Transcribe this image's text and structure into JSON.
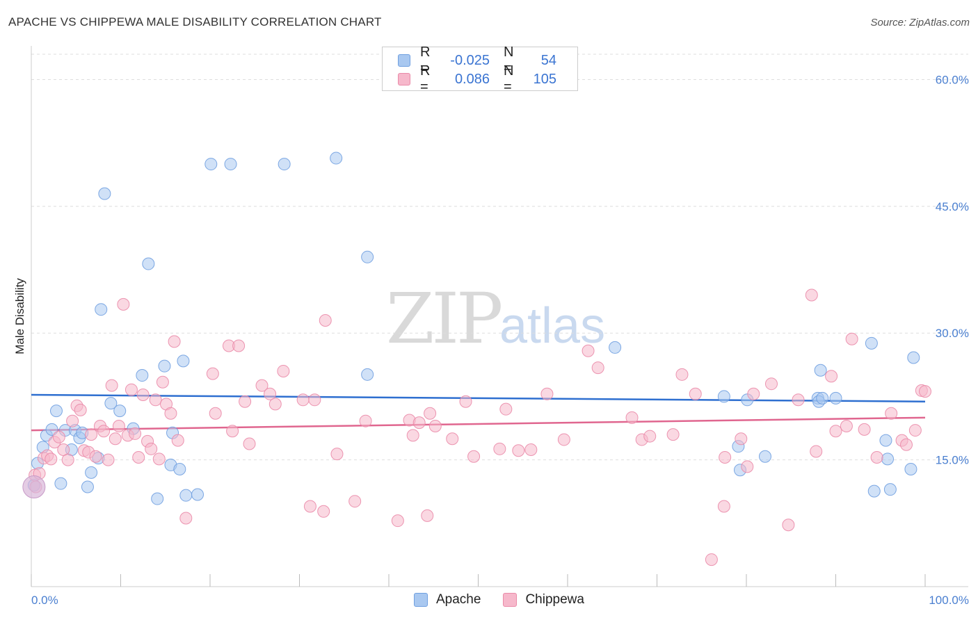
{
  "title": "APACHE VS CHIPPEWA MALE DISABILITY CORRELATION CHART",
  "source": "Source: ZipAtlas.com",
  "watermark": {
    "zip": "ZIP",
    "atlas": "atlas"
  },
  "legend": {
    "rows": [
      {
        "r_label": "R =",
        "r_value": "-0.025",
        "n_label": "N =",
        "n_value": "54"
      },
      {
        "r_label": "R =",
        "r_value": "0.086",
        "n_label": "N =",
        "n_value": "105"
      }
    ]
  },
  "bottom_legend": {
    "apache": "Apache",
    "chippewa": "Chippewa"
  },
  "colors": {
    "apache_fill": "#a9c8f0",
    "apache_stroke": "#6f9fe0",
    "apache_line": "#2e6fd0",
    "chippewa_fill": "#f6b8cb",
    "chippewa_stroke": "#ea8aa8",
    "chippewa_line": "#e0668f",
    "grid": "#dddddd",
    "axis_label": "#4a7fd0"
  },
  "chart_data": {
    "type": "scatter",
    "title": "APACHE VS CHIPPEWA MALE DISABILITY CORRELATION CHART",
    "xlabel": "",
    "ylabel": "Male Disability",
    "xlim": [
      0,
      100
    ],
    "ylim": [
      0,
      63
    ],
    "x_tick_labels": [
      "0.0%",
      "100.0%"
    ],
    "y_ticks": [
      15,
      30,
      45,
      60
    ],
    "y_tick_labels": [
      "15.0%",
      "30.0%",
      "45.0%",
      "60.0%"
    ],
    "grid": true,
    "series": [
      {
        "name": "Apache",
        "r": -0.025,
        "n": 54,
        "trend": {
          "x": [
            0,
            100
          ],
          "y": [
            22.7,
            21.9
          ]
        },
        "points": [
          [
            0.3,
            12.0
          ],
          [
            0.7,
            14.6
          ],
          [
            1.3,
            16.5
          ],
          [
            1.7,
            17.9
          ],
          [
            2.3,
            18.6
          ],
          [
            2.8,
            20.8
          ],
          [
            3.3,
            12.2
          ],
          [
            3.8,
            18.5
          ],
          [
            4.5,
            16.2
          ],
          [
            4.9,
            18.5
          ],
          [
            5.4,
            17.6
          ],
          [
            5.7,
            18.2
          ],
          [
            6.3,
            11.8
          ],
          [
            6.7,
            13.5
          ],
          [
            7.5,
            15.2
          ],
          [
            7.8,
            32.8
          ],
          [
            8.2,
            46.5
          ],
          [
            8.9,
            21.7
          ],
          [
            9.9,
            20.8
          ],
          [
            11.4,
            18.7
          ],
          [
            12.4,
            25.0
          ],
          [
            13.1,
            38.2
          ],
          [
            14.1,
            10.4
          ],
          [
            14.9,
            26.1
          ],
          [
            15.6,
            14.4
          ],
          [
            15.8,
            18.2
          ],
          [
            16.6,
            13.9
          ],
          [
            17.0,
            26.7
          ],
          [
            17.3,
            10.8
          ],
          [
            18.6,
            10.9
          ],
          [
            20.1,
            50.0
          ],
          [
            22.3,
            50.0
          ],
          [
            28.3,
            50.0
          ],
          [
            34.1,
            50.7
          ],
          [
            37.6,
            39.0
          ],
          [
            37.6,
            25.1
          ],
          [
            65.3,
            28.3
          ],
          [
            77.5,
            22.5
          ],
          [
            79.1,
            16.6
          ],
          [
            79.3,
            13.8
          ],
          [
            80.1,
            22.1
          ],
          [
            82.1,
            15.4
          ],
          [
            88.0,
            22.3
          ],
          [
            88.1,
            21.9
          ],
          [
            88.3,
            25.6
          ],
          [
            88.5,
            22.3
          ],
          [
            90.0,
            22.3
          ],
          [
            94.0,
            28.8
          ],
          [
            94.3,
            11.3
          ],
          [
            95.6,
            17.3
          ],
          [
            95.8,
            15.1
          ],
          [
            96.1,
            11.5
          ],
          [
            98.4,
            13.9
          ],
          [
            98.7,
            27.1
          ]
        ]
      },
      {
        "name": "Chippewa",
        "r": 0.086,
        "n": 105,
        "trend": {
          "x": [
            0,
            100
          ],
          "y": [
            18.5,
            20.0
          ]
        },
        "points": [
          [
            0.4,
            13.2
          ],
          [
            0.9,
            13.4
          ],
          [
            1.4,
            15.2
          ],
          [
            1.8,
            15.5
          ],
          [
            2.2,
            15.1
          ],
          [
            2.6,
            17.1
          ],
          [
            3.1,
            17.7
          ],
          [
            3.6,
            16.2
          ],
          [
            4.1,
            15.0
          ],
          [
            4.6,
            19.6
          ],
          [
            5.1,
            21.4
          ],
          [
            5.5,
            20.9
          ],
          [
            5.9,
            16.1
          ],
          [
            6.4,
            15.9
          ],
          [
            6.7,
            18.0
          ],
          [
            7.2,
            15.4
          ],
          [
            7.7,
            19.0
          ],
          [
            8.1,
            18.4
          ],
          [
            8.6,
            15.0
          ],
          [
            9.0,
            23.8
          ],
          [
            9.4,
            17.5
          ],
          [
            9.8,
            19.0
          ],
          [
            10.3,
            33.4
          ],
          [
            10.8,
            17.9
          ],
          [
            11.2,
            23.3
          ],
          [
            11.6,
            18.1
          ],
          [
            12.0,
            15.3
          ],
          [
            12.5,
            22.7
          ],
          [
            13.0,
            17.2
          ],
          [
            13.4,
            16.3
          ],
          [
            13.9,
            22.1
          ],
          [
            14.3,
            15.1
          ],
          [
            14.7,
            24.2
          ],
          [
            15.1,
            21.6
          ],
          [
            15.6,
            20.5
          ],
          [
            16.0,
            29.0
          ],
          [
            16.4,
            17.3
          ],
          [
            17.3,
            8.1
          ],
          [
            20.3,
            25.2
          ],
          [
            20.6,
            20.5
          ],
          [
            22.1,
            28.5
          ],
          [
            22.5,
            18.4
          ],
          [
            23.2,
            28.5
          ],
          [
            23.9,
            21.9
          ],
          [
            24.4,
            16.9
          ],
          [
            25.8,
            23.8
          ],
          [
            26.7,
            22.8
          ],
          [
            27.3,
            21.6
          ],
          [
            28.2,
            25.5
          ],
          [
            30.4,
            22.1
          ],
          [
            31.2,
            9.5
          ],
          [
            31.7,
            22.1
          ],
          [
            32.7,
            8.9
          ],
          [
            32.9,
            31.5
          ],
          [
            34.2,
            15.7
          ],
          [
            36.2,
            10.1
          ],
          [
            37.4,
            19.6
          ],
          [
            41.0,
            7.8
          ],
          [
            42.3,
            19.7
          ],
          [
            42.7,
            17.9
          ],
          [
            43.4,
            19.4
          ],
          [
            44.3,
            8.4
          ],
          [
            44.6,
            20.5
          ],
          [
            45.2,
            19.0
          ],
          [
            47.1,
            17.5
          ],
          [
            48.6,
            21.9
          ],
          [
            49.5,
            15.4
          ],
          [
            52.4,
            16.3
          ],
          [
            53.1,
            21.0
          ],
          [
            54.5,
            16.1
          ],
          [
            55.9,
            16.2
          ],
          [
            57.7,
            22.8
          ],
          [
            59.6,
            17.4
          ],
          [
            62.3,
            27.9
          ],
          [
            63.4,
            25.9
          ],
          [
            67.2,
            20.0
          ],
          [
            68.3,
            17.4
          ],
          [
            69.2,
            17.8
          ],
          [
            71.8,
            18.0
          ],
          [
            72.8,
            25.1
          ],
          [
            74.3,
            22.8
          ],
          [
            76.1,
            3.2
          ],
          [
            77.5,
            9.5
          ],
          [
            77.6,
            15.3
          ],
          [
            79.4,
            17.5
          ],
          [
            80.1,
            14.2
          ],
          [
            80.8,
            22.8
          ],
          [
            82.8,
            24.0
          ],
          [
            84.7,
            7.3
          ],
          [
            85.8,
            22.1
          ],
          [
            87.3,
            34.5
          ],
          [
            87.8,
            16.0
          ],
          [
            89.5,
            24.9
          ],
          [
            90.0,
            18.4
          ],
          [
            91.8,
            29.3
          ],
          [
            93.2,
            18.6
          ],
          [
            94.6,
            15.3
          ],
          [
            96.2,
            20.5
          ],
          [
            97.4,
            17.3
          ],
          [
            97.9,
            16.8
          ],
          [
            98.9,
            18.5
          ],
          [
            99.6,
            23.2
          ],
          [
            100.0,
            23.1
          ],
          [
            91.2,
            19.0
          ],
          [
            0.5,
            11.8
          ]
        ]
      }
    ]
  }
}
